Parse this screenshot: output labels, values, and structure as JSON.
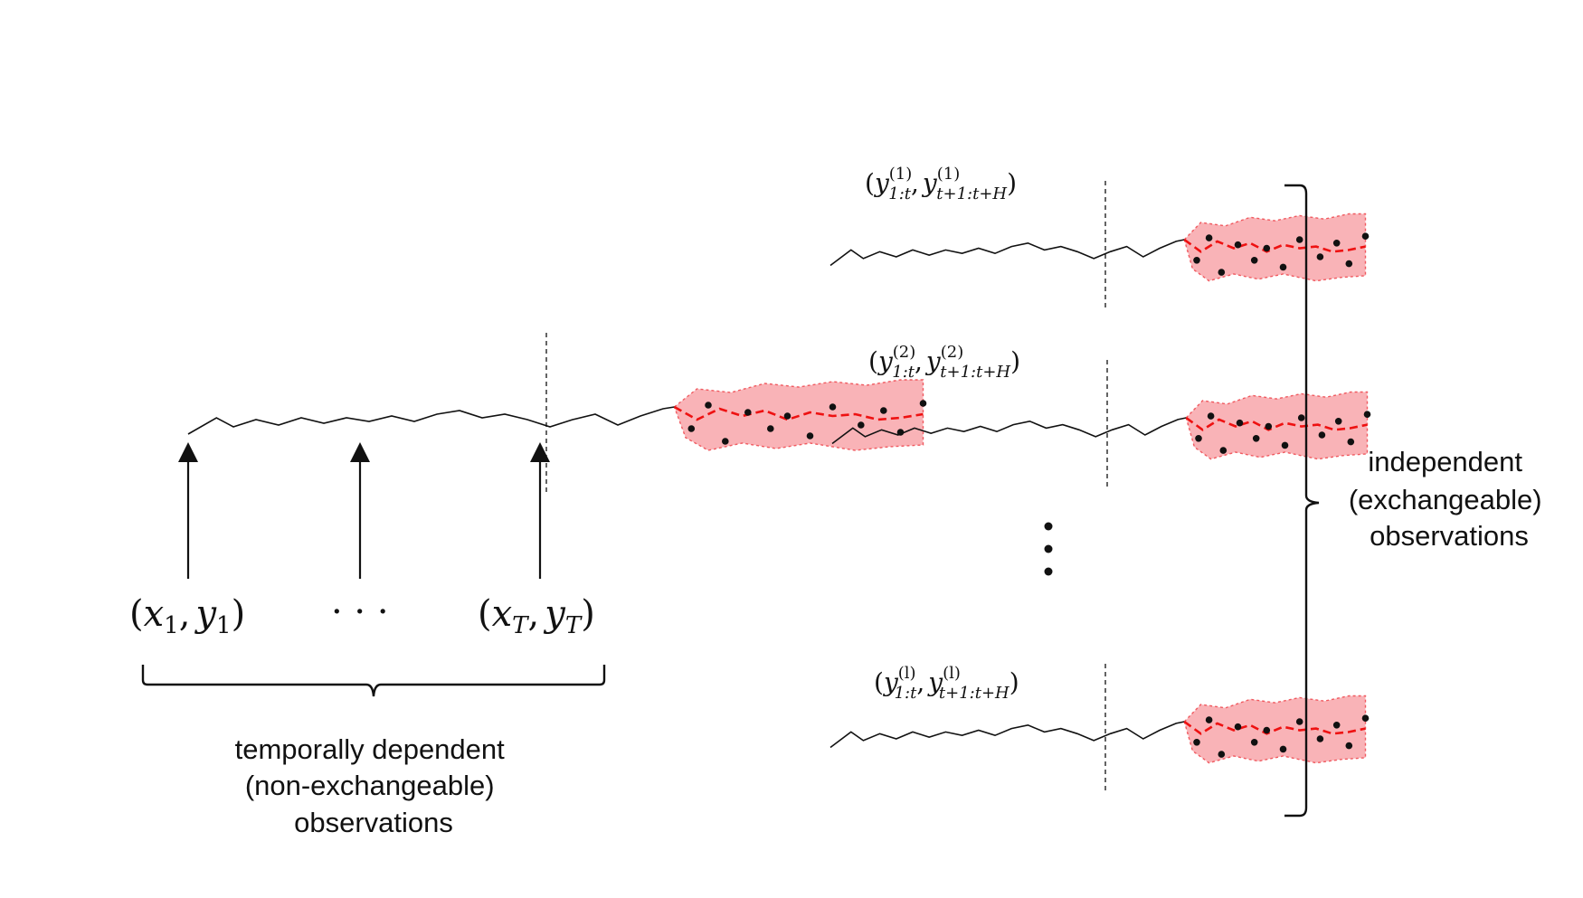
{
  "left_panel": {
    "first_label": {
      "open": "(",
      "x": "x",
      "x_sub": "1",
      "comma": ",",
      "y": "y",
      "y_sub": "1",
      "close": ")"
    },
    "ellipsis": "· · ·",
    "last_label": {
      "open": "(",
      "x": "x",
      "x_sub": "T",
      "comma": ",",
      "y": "y",
      "y_sub": "T",
      "close": ")"
    },
    "caption_lines": [
      "temporally dependent",
      "(non-exchangeable)",
      "observations"
    ]
  },
  "right_panel": {
    "series": [
      {
        "index": "(1)",
        "sub1": "1:t",
        "sub2": "t+1:t+H"
      },
      {
        "index": "(2)",
        "sub1": "1:t",
        "sub2": "t+1:t+H"
      },
      {
        "index": "(l)",
        "sub1": "1:t",
        "sub2": "t+1:t+H"
      }
    ],
    "caption_lines": [
      "independent",
      "(exchangeable)",
      "observations"
    ]
  },
  "colors": {
    "band_fill": "#f9b3b7",
    "band_edge": "#f05a60",
    "forecast_line": "#ee1111",
    "series_line": "#111111"
  }
}
